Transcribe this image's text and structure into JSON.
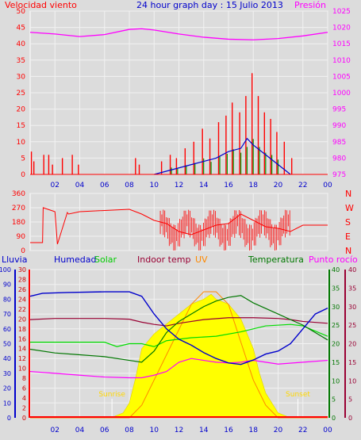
{
  "header": {
    "left_label": "Velocidad viento",
    "title": "24 hour graph day : 15 Julio 2013",
    "right_label": "Presión"
  },
  "colors": {
    "background": "#dcdcdc",
    "plot": "#dcdcdc",
    "grid": "#f2f2f2",
    "wind": "#ff0000",
    "wind_avg": "#0000cc",
    "gust": "#009900",
    "pressure": "#ff00ff",
    "humidity": "#0000cc",
    "solar": "#00dd00",
    "indoor": "#990033",
    "uv": "#ff8800",
    "temperature": "#007700",
    "dew": "#ff00ff",
    "rain_axis": "#0000cc",
    "rain_red": "#ff0000",
    "sun": "#ffff00",
    "sunrise": "#ffd700"
  },
  "chart_data": [
    {
      "type": "line",
      "panel": "wind_pressure",
      "title": "24 hour graph day : 15 Julio 2013",
      "ylabel_left": "Velocidad viento",
      "ylabel_right": "Presión",
      "ylim_left": [
        0,
        50
      ],
      "ylim_right": [
        975,
        1025
      ],
      "left_ticks": [
        "0",
        "5",
        "10",
        "15",
        "20",
        "25",
        "30",
        "35",
        "40",
        "45",
        "50"
      ],
      "right_ticks": [
        "975",
        "980",
        "985",
        "990",
        "995",
        "1000",
        "1005",
        "1010",
        "1015",
        "1020",
        "1025"
      ],
      "x_ticks": [
        "02",
        "04",
        "06",
        "08",
        "10",
        "12",
        "14",
        "16",
        "18",
        "20",
        "22",
        "00"
      ],
      "x_range": [
        0,
        24
      ],
      "pressure": {
        "name": "Presión",
        "x": [
          0,
          2,
          4,
          6,
          8,
          9,
          10,
          12,
          14,
          16,
          18,
          20,
          22,
          24
        ],
        "y": [
          1018.5,
          1018.0,
          1017.2,
          1017.8,
          1019.4,
          1019.6,
          1019.2,
          1018.0,
          1017.0,
          1016.4,
          1016.2,
          1016.6,
          1017.4,
          1018.5
        ]
      },
      "wind_bursts": [
        {
          "x": 0.1,
          "y": 7
        },
        {
          "x": 0.3,
          "y": 4
        },
        {
          "x": 1.1,
          "y": 6
        },
        {
          "x": 1.5,
          "y": 6
        },
        {
          "x": 1.8,
          "y": 3
        },
        {
          "x": 2.6,
          "y": 5
        },
        {
          "x": 3.4,
          "y": 6
        },
        {
          "x": 3.9,
          "y": 3
        },
        {
          "x": 8.5,
          "y": 5
        },
        {
          "x": 8.8,
          "y": 3
        },
        {
          "x": 10.6,
          "y": 4
        },
        {
          "x": 11.3,
          "y": 6
        },
        {
          "x": 11.8,
          "y": 5
        },
        {
          "x": 12.5,
          "y": 8
        },
        {
          "x": 13.2,
          "y": 10
        },
        {
          "x": 13.9,
          "y": 14
        },
        {
          "x": 14.5,
          "y": 11
        },
        {
          "x": 15.2,
          "y": 16
        },
        {
          "x": 15.8,
          "y": 18
        },
        {
          "x": 16.3,
          "y": 22
        },
        {
          "x": 16.9,
          "y": 19
        },
        {
          "x": 17.4,
          "y": 24
        },
        {
          "x": 17.9,
          "y": 31
        },
        {
          "x": 18.4,
          "y": 24
        },
        {
          "x": 18.9,
          "y": 19
        },
        {
          "x": 19.4,
          "y": 17
        },
        {
          "x": 19.9,
          "y": 13
        },
        {
          "x": 20.5,
          "y": 10
        },
        {
          "x": 21.1,
          "y": 5
        }
      ],
      "wind_avg": {
        "name": "avg",
        "x": [
          10,
          11,
          12,
          13,
          14,
          15,
          16,
          17,
          17.5,
          18,
          19,
          20,
          21
        ],
        "y": [
          0,
          1,
          2,
          3,
          4,
          5,
          7,
          8,
          11,
          9,
          6,
          3,
          0
        ]
      }
    },
    {
      "type": "line",
      "panel": "wind_direction",
      "ylim": [
        0,
        360
      ],
      "y_ticks": [
        "360",
        "270",
        "180",
        "90",
        "0"
      ],
      "compass": [
        "N",
        "W",
        "S",
        "E",
        "N"
      ],
      "x_range": [
        0,
        24
      ],
      "direction": {
        "x": [
          0,
          1.0,
          1.05,
          2,
          2.2,
          3,
          3.1,
          4,
          8,
          9,
          10,
          11,
          12,
          13,
          14,
          15,
          16,
          17,
          18,
          19,
          20,
          21,
          22,
          24
        ],
        "y": [
          50,
          50,
          270,
          245,
          40,
          240,
          230,
          245,
          260,
          230,
          190,
          170,
          120,
          100,
          130,
          160,
          170,
          230,
          190,
          150,
          140,
          120,
          160,
          160
        ]
      }
    },
    {
      "type": "line",
      "panel": "multi",
      "legend": [
        "Lluvia",
        "Humedad",
        "Solar",
        "Indoor temp",
        "UV",
        "Temperatura",
        "Punto rocío"
      ],
      "left_ticks_outer": [
        "0",
        "10",
        "20",
        "30",
        "40",
        "50",
        "60",
        "70",
        "80",
        "90",
        "100"
      ],
      "left_ticks_inner": [
        "0",
        "2",
        "4",
        "6",
        "8",
        "10",
        "12",
        "14",
        "16",
        "18",
        "20",
        "22",
        "24",
        "26",
        "28",
        "30"
      ],
      "right_ticks_inner": [
        "0",
        "5",
        "10",
        "15",
        "20",
        "25",
        "30",
        "35",
        "40"
      ],
      "right_ticks_outer": [
        "0",
        "5",
        "10",
        "15",
        "20",
        "25",
        "30",
        "35",
        "40"
      ],
      "x_ticks": [
        "02",
        "04",
        "06",
        "08",
        "10",
        "12",
        "14",
        "16",
        "18",
        "20",
        "22",
        "00"
      ],
      "x_range": [
        0,
        24
      ],
      "sunrise_label": "Sunrise",
      "sunset_label": "Sunset",
      "humidity": {
        "name": "Humedad",
        "x": [
          0,
          1,
          3,
          6,
          8,
          9,
          10,
          11,
          12,
          13,
          14,
          15,
          16,
          17,
          18,
          19,
          20,
          21,
          22,
          23,
          24
        ],
        "y": [
          82,
          84,
          84.5,
          85,
          85,
          82,
          70,
          60,
          53,
          49,
          44,
          40,
          37,
          36,
          39,
          43,
          45,
          50,
          60,
          70,
          74
        ]
      },
      "solar": {
        "name": "Solar",
        "x": [
          0,
          2,
          4,
          6,
          7,
          8,
          9,
          10,
          11,
          13,
          15,
          17,
          19,
          21,
          22,
          24
        ],
        "y": [
          51,
          51,
          51,
          51,
          48,
          50,
          50,
          48,
          52,
          54,
          55,
          58,
          62,
          63,
          62,
          55
        ]
      },
      "indoor_temp": {
        "name": "Indoor temp",
        "x": [
          0,
          2,
          4,
          6,
          8,
          9,
          10,
          11,
          12,
          14,
          16,
          18,
          20,
          21,
          22,
          24
        ],
        "y": [
          26.5,
          26.8,
          26.8,
          26.8,
          26.6,
          25.8,
          25.2,
          24.8,
          25.5,
          26.5,
          27.0,
          27.0,
          26.8,
          26.5,
          26.0,
          25.5
        ]
      },
      "temperature": {
        "name": "Temperatura",
        "x": [
          0,
          2,
          4,
          6,
          8,
          9,
          10,
          11,
          12,
          13,
          14,
          15,
          16,
          17,
          18,
          19,
          20,
          21,
          22,
          23,
          24
        ],
        "y": [
          18.5,
          17.5,
          17.0,
          16.5,
          15.5,
          15.0,
          18.0,
          23.0,
          26.0,
          28.0,
          30.0,
          31.5,
          32.5,
          33.0,
          31.0,
          29.5,
          28.0,
          26.5,
          25.0,
          23.0,
          21.0
        ]
      },
      "dew_point": {
        "name": "Punto rocío",
        "x": [
          0,
          2,
          4,
          6,
          8,
          9,
          10,
          11,
          12,
          13,
          14,
          15,
          16,
          17,
          18,
          19,
          20,
          22,
          24
        ],
        "y": [
          12.5,
          12.0,
          11.5,
          11.0,
          10.8,
          10.8,
          11.5,
          12.5,
          15.0,
          16.0,
          15.5,
          15.0,
          14.8,
          15.0,
          15.5,
          15.0,
          14.5,
          15.0,
          15.5
        ]
      },
      "solar_radiation": {
        "x": [
          0,
          6.5,
          7.5,
          8.0,
          8.5,
          9,
          10,
          11,
          12,
          13,
          14,
          14.6,
          15,
          16,
          17,
          18,
          18.5,
          19,
          20,
          21,
          24
        ],
        "y": [
          0,
          0,
          1,
          3,
          8,
          14,
          17,
          19,
          21,
          23,
          24,
          25,
          24,
          23,
          20,
          14,
          9,
          5,
          1,
          0,
          0
        ]
      },
      "uv": {
        "name": "UV",
        "x": [
          0,
          8,
          9,
          10,
          11,
          12,
          13,
          14,
          15,
          16,
          17,
          18,
          19,
          20,
          24
        ],
        "y": [
          0,
          0,
          1,
          3,
          5,
          7,
          9,
          10,
          10,
          9,
          6,
          3,
          1,
          0,
          0
        ]
      }
    }
  ]
}
